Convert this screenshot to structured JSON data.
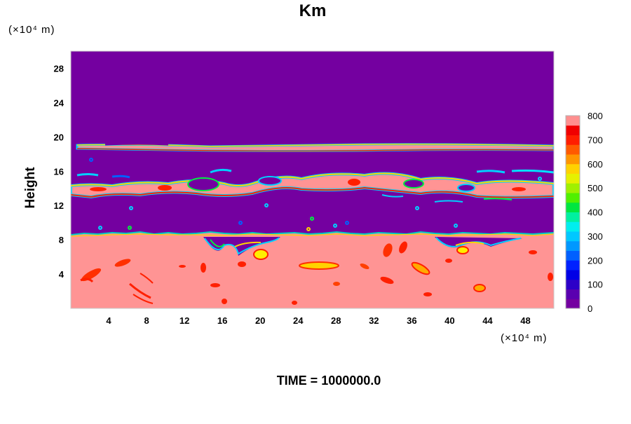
{
  "chart_data": {
    "type": "heatmap",
    "title": "Km",
    "xlabel": "",
    "ylabel": "Height",
    "x_unit_label": "(×10⁴ m)",
    "y_unit_label": "(×10⁴ m)",
    "xlim": [
      0,
      51
    ],
    "ylim": [
      0,
      30
    ],
    "x_ticks": [
      4,
      8,
      12,
      16,
      20,
      24,
      28,
      32,
      36,
      40,
      44,
      48
    ],
    "y_ticks": [
      4,
      8,
      12,
      16,
      20,
      24,
      28
    ],
    "colorbar": {
      "min": 0,
      "max": 800,
      "step": 50,
      "tick_values": [
        0,
        100,
        200,
        300,
        400,
        500,
        600,
        700,
        800
      ],
      "colors": [
        "#7400a0",
        "#5a00b0",
        "#2d00c8",
        "#0000e6",
        "#0022ff",
        "#0060ff",
        "#0098ff",
        "#00c8ff",
        "#00eeee",
        "#00f0a0",
        "#00e640",
        "#50f000",
        "#a0f000",
        "#e6f000",
        "#ffd200",
        "#ff9600",
        "#ff5a00",
        "#ff1e00",
        "#f00000",
        "#ff8f8f"
      ]
    },
    "layers": [
      {
        "name": "upper thin turbulent band",
        "y_range": [
          18.5,
          19.2
        ]
      },
      {
        "name": "middle turbulent band",
        "y_range": [
          12.8,
          16.0
        ]
      },
      {
        "name": "lower high-Km layer",
        "y_range": [
          0,
          8.7
        ]
      }
    ],
    "footer": "TIME = 1000000.0"
  }
}
